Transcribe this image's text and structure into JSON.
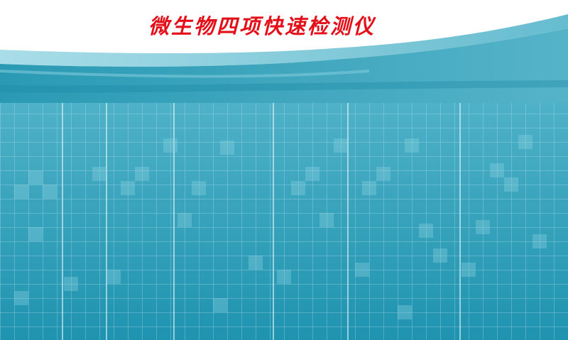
{
  "title": "微生物四项快速检测仪",
  "colors": {
    "title": "#e3101a",
    "background_top": "#ffffff",
    "teal_dark": "#1f8fa8",
    "teal_mid": "#3fa9c0",
    "teal_light": "#8fd0df",
    "grid_line": "#c8eaf2"
  }
}
